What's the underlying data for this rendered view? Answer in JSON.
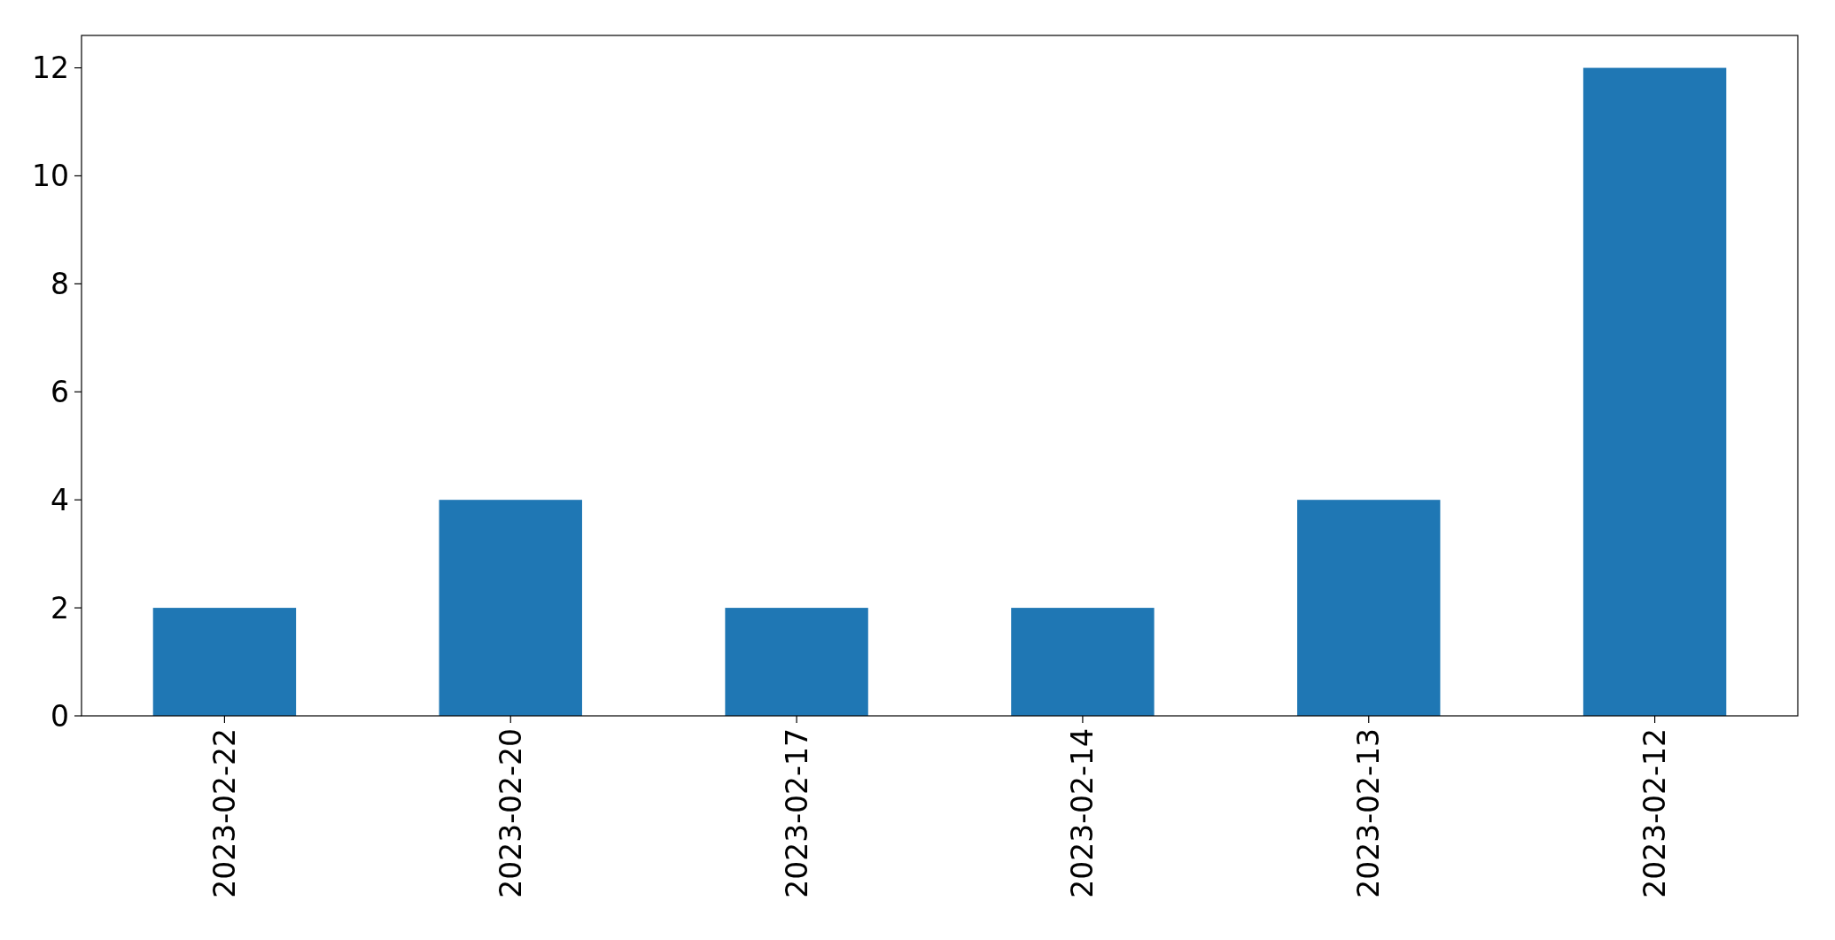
{
  "chart_data": {
    "type": "bar",
    "categories": [
      "2023-02-22",
      "2023-02-20",
      "2023-02-17",
      "2023-02-14",
      "2023-02-13",
      "2023-02-12"
    ],
    "values": [
      2,
      4,
      2,
      2,
      4,
      12
    ],
    "color": "#1f77b4",
    "ylim": [
      0,
      12.6
    ],
    "yticks": [
      0,
      2,
      4,
      6,
      8,
      10,
      12
    ]
  }
}
